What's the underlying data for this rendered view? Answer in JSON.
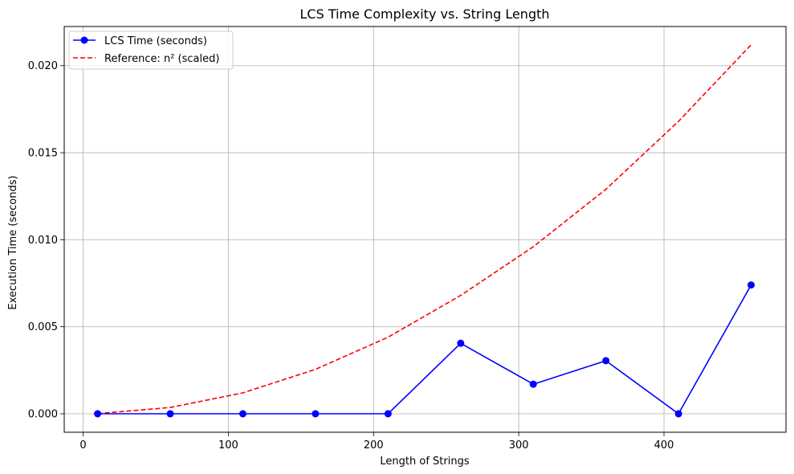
{
  "chart_data": {
    "type": "line",
    "title": "LCS Time Complexity vs. String Length",
    "xlabel": "Length of Strings",
    "ylabel": "Execution Time (seconds)",
    "xlim": [
      -13,
      484
    ],
    "ylim": [
      -0.00106,
      0.02225
    ],
    "xticks": [
      0,
      100,
      200,
      300,
      400
    ],
    "xtick_labels": [
      "0",
      "100",
      "200",
      "300",
      "400"
    ],
    "yticks": [
      0.0,
      0.005,
      0.01,
      0.015,
      0.02
    ],
    "ytick_labels": [
      "0.000",
      "0.005",
      "0.010",
      "0.015",
      "0.020"
    ],
    "grid": true,
    "legend_position": "upper-left",
    "series": [
      {
        "name": "LCS Time (seconds)",
        "color": "#0000ff",
        "style": "solid",
        "marker": "circle",
        "x": [
          10,
          60,
          110,
          160,
          210,
          260,
          310,
          360,
          410,
          460
        ],
        "y": [
          0.0,
          0.0,
          0.0,
          0.0,
          0.0,
          0.00405,
          0.0017,
          0.00305,
          0.0,
          0.0074
        ]
      },
      {
        "name": "Reference: n² (scaled)",
        "color": "#ff0000",
        "style": "dashed",
        "marker": "none",
        "x": [
          10,
          60,
          110,
          160,
          210,
          260,
          310,
          360,
          410,
          460
        ],
        "y": [
          1e-05,
          0.00036,
          0.0012,
          0.00255,
          0.0044,
          0.0068,
          0.0096,
          0.0129,
          0.0168,
          0.0212
        ]
      }
    ]
  }
}
